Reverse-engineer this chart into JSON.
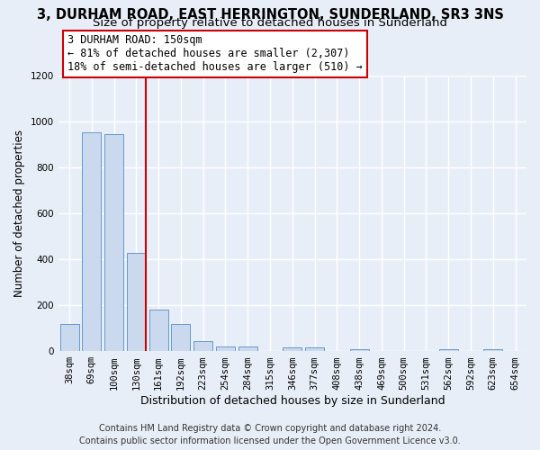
{
  "title_line1": "3, DURHAM ROAD, EAST HERRINGTON, SUNDERLAND, SR3 3NS",
  "title_line2": "Size of property relative to detached houses in Sunderland",
  "xlabel": "Distribution of detached houses by size in Sunderland",
  "ylabel": "Number of detached properties",
  "categories": [
    "38sqm",
    "69sqm",
    "100sqm",
    "130sqm",
    "161sqm",
    "192sqm",
    "223sqm",
    "254sqm",
    "284sqm",
    "315sqm",
    "346sqm",
    "377sqm",
    "408sqm",
    "438sqm",
    "469sqm",
    "500sqm",
    "531sqm",
    "562sqm",
    "592sqm",
    "623sqm",
    "654sqm"
  ],
  "values": [
    120,
    955,
    945,
    428,
    183,
    118,
    43,
    20,
    20,
    0,
    15,
    15,
    0,
    8,
    0,
    0,
    0,
    8,
    0,
    8,
    0
  ],
  "bar_color": "#cad9ed",
  "bar_edgecolor": "#6699cc",
  "red_line_index": 3,
  "ylim": [
    0,
    1200
  ],
  "yticks": [
    0,
    200,
    400,
    600,
    800,
    1000,
    1200
  ],
  "annotation_line1": "3 DURHAM ROAD: 150sqm",
  "annotation_line2": "← 81% of detached houses are smaller (2,307)",
  "annotation_line3": "18% of semi-detached houses are larger (510) →",
  "annotation_box_facecolor": "#ffffff",
  "annotation_box_edgecolor": "#cc0000",
  "footer_line1": "Contains HM Land Registry data © Crown copyright and database right 2024.",
  "footer_line2": "Contains public sector information licensed under the Open Government Licence v3.0.",
  "background_color": "#e8eef8",
  "plot_bg_color": "#e8eef8",
  "grid_color": "#ffffff",
  "title1_fontsize": 10.5,
  "title2_fontsize": 9.5,
  "ylabel_fontsize": 8.5,
  "xlabel_fontsize": 9,
  "tick_fontsize": 7.5,
  "annotation_fontsize": 8.5,
  "footer_fontsize": 7
}
